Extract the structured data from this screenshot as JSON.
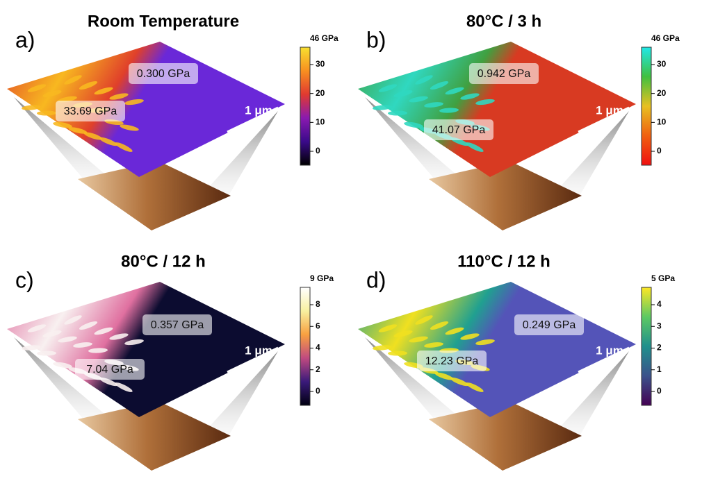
{
  "panels": [
    {
      "label": "a)",
      "title": "Room Temperature",
      "annotations": [
        "0.300 GPa",
        "33.69 GPa"
      ],
      "scale_bar": "1 μm",
      "colorbar": {
        "max_label": "46 GPa",
        "ticks": [
          30,
          20,
          10,
          0
        ]
      }
    },
    {
      "label": "b)",
      "title": "80°C / 3 h",
      "annotations": [
        "0.942 GPa",
        "41.07 GPa"
      ],
      "scale_bar": "1 μm",
      "colorbar": {
        "max_label": "46 GPa",
        "ticks": [
          30,
          20,
          10,
          0
        ]
      }
    },
    {
      "label": "c)",
      "title": "80°C / 12 h",
      "annotations": [
        "0.357 GPa",
        "7.04 GPa"
      ],
      "scale_bar": "1 μm",
      "colorbar": {
        "max_label": "9 GPa",
        "ticks": [
          8,
          6,
          4,
          2,
          0
        ]
      }
    },
    {
      "label": "d)",
      "title": "110°C / 12 h",
      "annotations": [
        "0.249 GPa",
        "12.23 GPa"
      ],
      "scale_bar": "1 μm",
      "colorbar": {
        "max_label": "5 GPa",
        "ticks": [
          4,
          3,
          2,
          1,
          0
        ]
      }
    }
  ]
}
